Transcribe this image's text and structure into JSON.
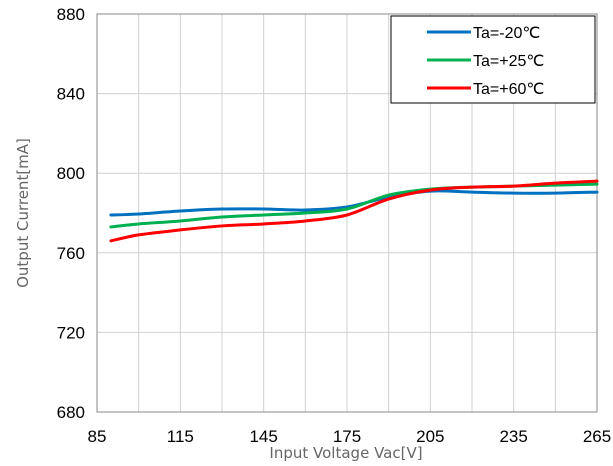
{
  "chart_data": {
    "type": "line",
    "title": "",
    "xlabel": "Input Voltage Vac[V]",
    "ylabel": "Output Current[mA]",
    "xlim": [
      85,
      265
    ],
    "ylim": [
      680,
      880
    ],
    "x_ticks": [
      85,
      115,
      145,
      175,
      205,
      235,
      265
    ],
    "y_ticks": [
      680,
      720,
      760,
      800,
      840,
      880
    ],
    "x_minor_gridlines": [
      100,
      130,
      160,
      190,
      220,
      250
    ],
    "grid": true,
    "legend_placement": "top-right",
    "series": [
      {
        "name": "Ta=-20℃",
        "color": "#0070C0",
        "x": [
          90,
          100,
          115,
          130,
          145,
          160,
          175,
          190,
          205,
          220,
          235,
          250,
          265
        ],
        "y": [
          779,
          779.5,
          781,
          782,
          782,
          781.5,
          783,
          788,
          791,
          790.5,
          790,
          790,
          790.5
        ]
      },
      {
        "name": "Ta=+25℃",
        "color": "#00B050",
        "x": [
          90,
          100,
          115,
          130,
          145,
          160,
          175,
          190,
          205,
          220,
          235,
          250,
          265
        ],
        "y": [
          773,
          774.5,
          776,
          778,
          779,
          780,
          782,
          789,
          792,
          793,
          793.5,
          794,
          794.5
        ]
      },
      {
        "name": "Ta=+60℃",
        "color": "#FF0000",
        "x": [
          90,
          100,
          115,
          130,
          145,
          160,
          175,
          190,
          205,
          220,
          235,
          250,
          265
        ],
        "y": [
          766,
          769,
          771.5,
          773.5,
          774.5,
          776,
          779,
          787,
          791.5,
          793,
          793.5,
          795,
          796
        ]
      }
    ]
  }
}
